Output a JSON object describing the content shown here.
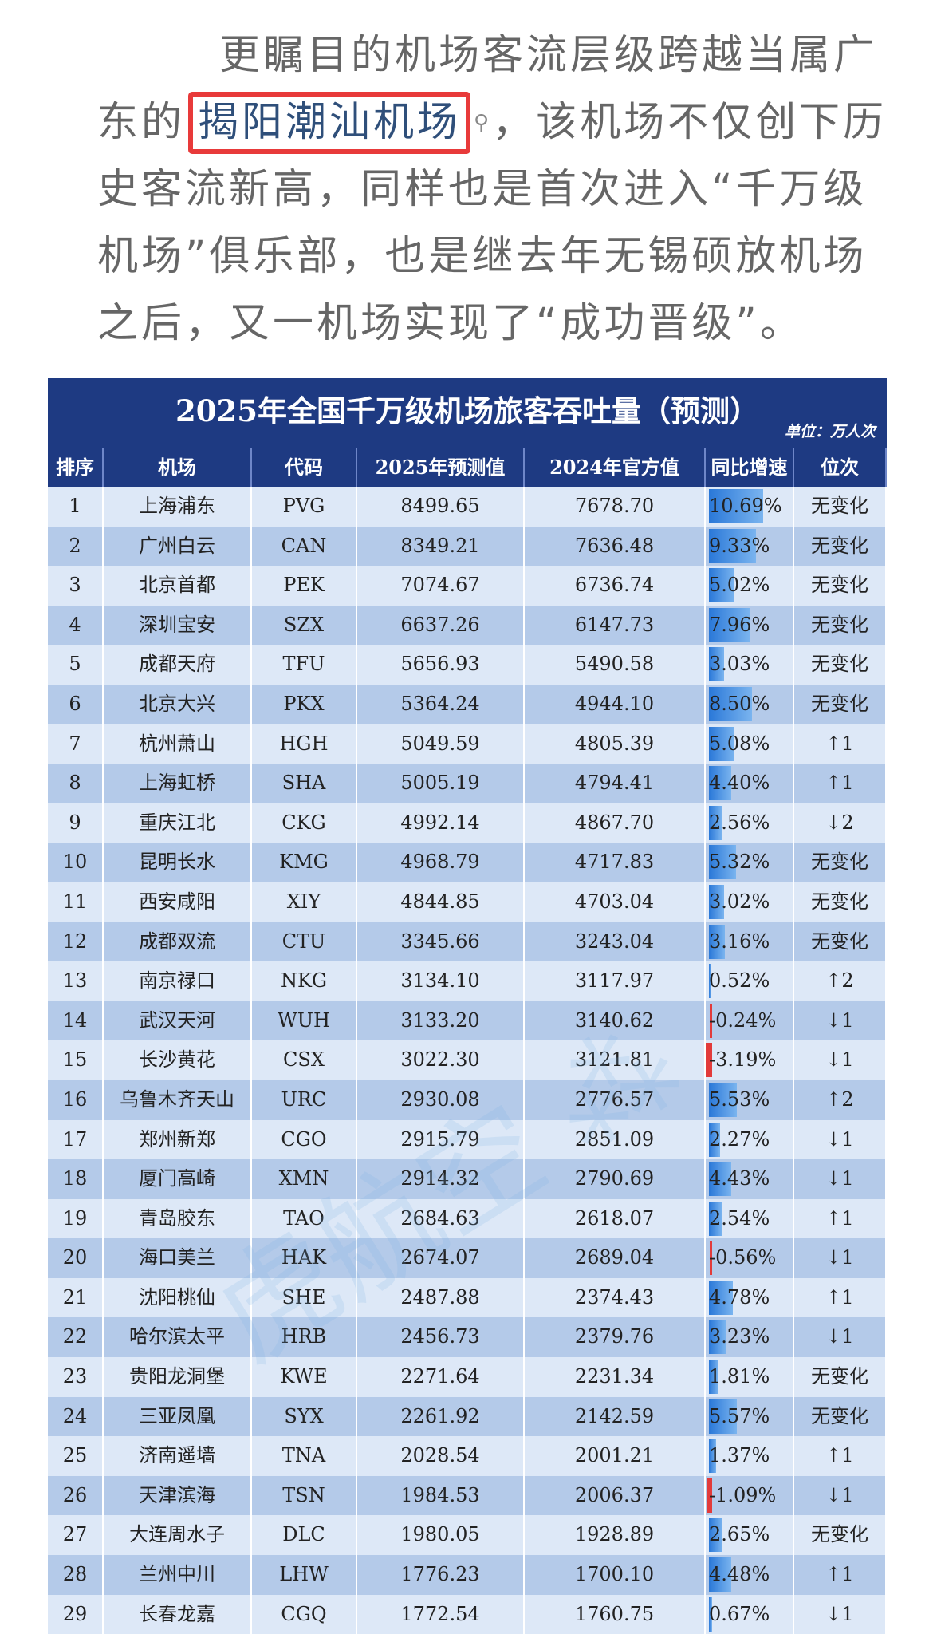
{
  "paragraph": {
    "line1": "更瞩目的机场客流层级跨越当属广",
    "line2_pre": "东的",
    "line2_highlight": "揭阳潮汕机场",
    "line2_post": "，该机场不仅创下历",
    "line3": "史客流新高，同样也是首次进入“千万级",
    "line4": "机场”俱乐部，也是继去年无锡硕放机场",
    "line5": "之后，又一机场实现了“成功晋级”。"
  },
  "table": {
    "title": "2025年全国千万级机场旅客吞吐量（预测）",
    "unit": "单位：万人次",
    "headers": [
      "排序",
      "机场",
      "代码",
      "2025年预测值",
      "2024年官方值",
      "同比增速",
      "位次"
    ],
    "rows": [
      {
        "rank": "1",
        "airport": "上海浦东",
        "code": "PVG",
        "v2025": "8499.65",
        "v2024": "7678.70",
        "growth": "10.69%",
        "growth_value": 10.69,
        "change": "无变化"
      },
      {
        "rank": "2",
        "airport": "广州白云",
        "code": "CAN",
        "v2025": "8349.21",
        "v2024": "7636.48",
        "growth": "9.33%",
        "growth_value": 9.33,
        "change": "无变化"
      },
      {
        "rank": "3",
        "airport": "北京首都",
        "code": "PEK",
        "v2025": "7074.67",
        "v2024": "6736.74",
        "growth": "5.02%",
        "growth_value": 5.02,
        "change": "无变化"
      },
      {
        "rank": "4",
        "airport": "深圳宝安",
        "code": "SZX",
        "v2025": "6637.26",
        "v2024": "6147.73",
        "growth": "7.96%",
        "growth_value": 7.96,
        "change": "无变化"
      },
      {
        "rank": "5",
        "airport": "成都天府",
        "code": "TFU",
        "v2025": "5656.93",
        "v2024": "5490.58",
        "growth": "3.03%",
        "growth_value": 3.03,
        "change": "无变化"
      },
      {
        "rank": "6",
        "airport": "北京大兴",
        "code": "PKX",
        "v2025": "5364.24",
        "v2024": "4944.10",
        "growth": "8.50%",
        "growth_value": 8.5,
        "change": "无变化"
      },
      {
        "rank": "7",
        "airport": "杭州萧山",
        "code": "HGH",
        "v2025": "5049.59",
        "v2024": "4805.39",
        "growth": "5.08%",
        "growth_value": 5.08,
        "change": "↑1"
      },
      {
        "rank": "8",
        "airport": "上海虹桥",
        "code": "SHA",
        "v2025": "5005.19",
        "v2024": "4794.41",
        "growth": "4.40%",
        "growth_value": 4.4,
        "change": "↑1"
      },
      {
        "rank": "9",
        "airport": "重庆江北",
        "code": "CKG",
        "v2025": "4992.14",
        "v2024": "4867.70",
        "growth": "2.56%",
        "growth_value": 2.56,
        "change": "↓2"
      },
      {
        "rank": "10",
        "airport": "昆明长水",
        "code": "KMG",
        "v2025": "4968.79",
        "v2024": "4717.83",
        "growth": "5.32%",
        "growth_value": 5.32,
        "change": "无变化"
      },
      {
        "rank": "11",
        "airport": "西安咸阳",
        "code": "XIY",
        "v2025": "4844.85",
        "v2024": "4703.04",
        "growth": "3.02%",
        "growth_value": 3.02,
        "change": "无变化"
      },
      {
        "rank": "12",
        "airport": "成都双流",
        "code": "CTU",
        "v2025": "3345.66",
        "v2024": "3243.04",
        "growth": "3.16%",
        "growth_value": 3.16,
        "change": "无变化"
      },
      {
        "rank": "13",
        "airport": "南京禄口",
        "code": "NKG",
        "v2025": "3134.10",
        "v2024": "3117.97",
        "growth": "0.52%",
        "growth_value": 0.52,
        "change": "↑2"
      },
      {
        "rank": "14",
        "airport": "武汉天河",
        "code": "WUH",
        "v2025": "3133.20",
        "v2024": "3140.62",
        "growth": "-0.24%",
        "growth_value": -0.24,
        "change": "↓1"
      },
      {
        "rank": "15",
        "airport": "长沙黄花",
        "code": "CSX",
        "v2025": "3022.30",
        "v2024": "3121.81",
        "growth": "-3.19%",
        "growth_value": -3.19,
        "change": "↓1"
      },
      {
        "rank": "16",
        "airport": "乌鲁木齐天山",
        "code": "URC",
        "v2025": "2930.08",
        "v2024": "2776.57",
        "growth": "5.53%",
        "growth_value": 5.53,
        "change": "↑2"
      },
      {
        "rank": "17",
        "airport": "郑州新郑",
        "code": "CGO",
        "v2025": "2915.79",
        "v2024": "2851.09",
        "growth": "2.27%",
        "growth_value": 2.27,
        "change": "↓1"
      },
      {
        "rank": "18",
        "airport": "厦门高崎",
        "code": "XMN",
        "v2025": "2914.32",
        "v2024": "2790.69",
        "growth": "4.43%",
        "growth_value": 4.43,
        "change": "↓1"
      },
      {
        "rank": "19",
        "airport": "青岛胶东",
        "code": "TAO",
        "v2025": "2684.63",
        "v2024": "2618.07",
        "growth": "2.54%",
        "growth_value": 2.54,
        "change": "↑1"
      },
      {
        "rank": "20",
        "airport": "海口美兰",
        "code": "HAK",
        "v2025": "2674.07",
        "v2024": "2689.04",
        "growth": "-0.56%",
        "growth_value": -0.56,
        "change": "↓1"
      },
      {
        "rank": "21",
        "airport": "沈阳桃仙",
        "code": "SHE",
        "v2025": "2487.88",
        "v2024": "2374.43",
        "growth": "4.78%",
        "growth_value": 4.78,
        "change": "↑1"
      },
      {
        "rank": "22",
        "airport": "哈尔滨太平",
        "code": "HRB",
        "v2025": "2456.73",
        "v2024": "2379.76",
        "growth": "3.23%",
        "growth_value": 3.23,
        "change": "↓1"
      },
      {
        "rank": "23",
        "airport": "贵阳龙洞堡",
        "code": "KWE",
        "v2025": "2271.64",
        "v2024": "2231.34",
        "growth": "1.81%",
        "growth_value": 1.81,
        "change": "无变化"
      },
      {
        "rank": "24",
        "airport": "三亚凤凰",
        "code": "SYX",
        "v2025": "2261.92",
        "v2024": "2142.59",
        "growth": "5.57%",
        "growth_value": 5.57,
        "change": "无变化"
      },
      {
        "rank": "25",
        "airport": "济南遥墙",
        "code": "TNA",
        "v2025": "2028.54",
        "v2024": "2001.21",
        "growth": "1.37%",
        "growth_value": 1.37,
        "change": "↑1"
      },
      {
        "rank": "26",
        "airport": "天津滨海",
        "code": "TSN",
        "v2025": "1984.53",
        "v2024": "2006.37",
        "growth": "-1.09%",
        "growth_value": -1.09,
        "change": "↓1"
      },
      {
        "rank": "27",
        "airport": "大连周水子",
        "code": "DLC",
        "v2025": "1980.05",
        "v2024": "1928.89",
        "growth": "2.65%",
        "growth_value": 2.65,
        "change": "无变化"
      },
      {
        "rank": "28",
        "airport": "兰州中川",
        "code": "LHW",
        "v2025": "1776.23",
        "v2024": "1700.10",
        "growth": "4.48%",
        "growth_value": 4.48,
        "change": "↑1"
      },
      {
        "rank": "29",
        "airport": "长春龙嘉",
        "code": "CGQ",
        "v2025": "1772.54",
        "v2024": "1760.75",
        "growth": "0.67%",
        "growth_value": 0.67,
        "change": "↓1"
      }
    ]
  },
  "colors": {
    "header_bg": "#1e3a82",
    "highlight_border": "#e83a3a",
    "bar_positive": "#2a78d8",
    "bar_negative": "#e23b3b"
  }
}
